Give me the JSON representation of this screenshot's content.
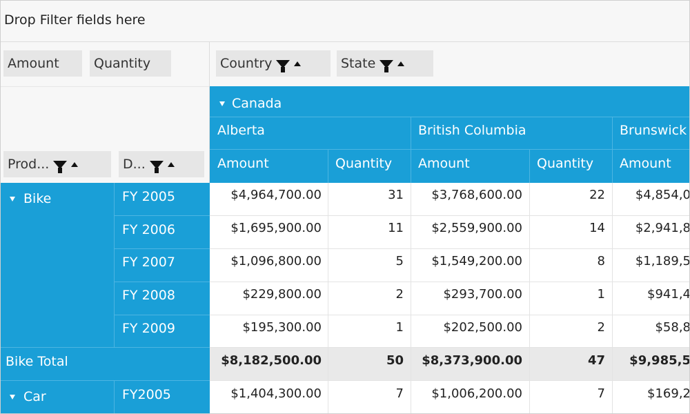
{
  "filter_area": {
    "placeholder": "Drop Filter fields here"
  },
  "value_fields": [
    "Amount",
    "Quantity"
  ],
  "column_fields": [
    {
      "label": "Country"
    },
    {
      "label": "State"
    }
  ],
  "row_fields": [
    {
      "label": "Prod..."
    },
    {
      "label": "D..."
    }
  ],
  "column_header": {
    "country": "Canada",
    "states": [
      "Alberta",
      "British Columbia",
      "Brunswick"
    ],
    "measures": [
      "Amount",
      "Quantity",
      "Amount",
      "Quantity",
      "Amount"
    ]
  },
  "rows": [
    {
      "product": "Bike",
      "date": "FY 2005",
      "values": [
        "$4,964,700.00",
        "31",
        "$3,768,600.00",
        "22",
        "$4,854,0"
      ]
    },
    {
      "product": "",
      "date": "FY 2006",
      "values": [
        "$1,695,900.00",
        "11",
        "$2,559,900.00",
        "14",
        "$2,941,8"
      ]
    },
    {
      "product": "",
      "date": "FY 2007",
      "values": [
        "$1,096,800.00",
        "5",
        "$1,549,200.00",
        "8",
        "$1,189,5"
      ]
    },
    {
      "product": "",
      "date": "FY 2008",
      "values": [
        "$229,800.00",
        "2",
        "$293,700.00",
        "1",
        "$941,4"
      ]
    },
    {
      "product": "",
      "date": "FY 2009",
      "values": [
        "$195,300.00",
        "1",
        "$202,500.00",
        "2",
        "$58,8"
      ]
    }
  ],
  "total_row": {
    "label": "Bike Total",
    "values": [
      "$8,182,500.00",
      "50",
      "$8,373,900.00",
      "47",
      "$9,985,5"
    ]
  },
  "next_row": {
    "product": "Car",
    "date": "FY2005",
    "values": [
      "$1,404,300.00",
      "7",
      "$1,006,200.00",
      "7",
      "$169,2"
    ]
  },
  "colors": {
    "header_blue": "#1a9fd7",
    "total_gray": "#e9e9e9",
    "zone_gray": "#f7f7f7"
  }
}
